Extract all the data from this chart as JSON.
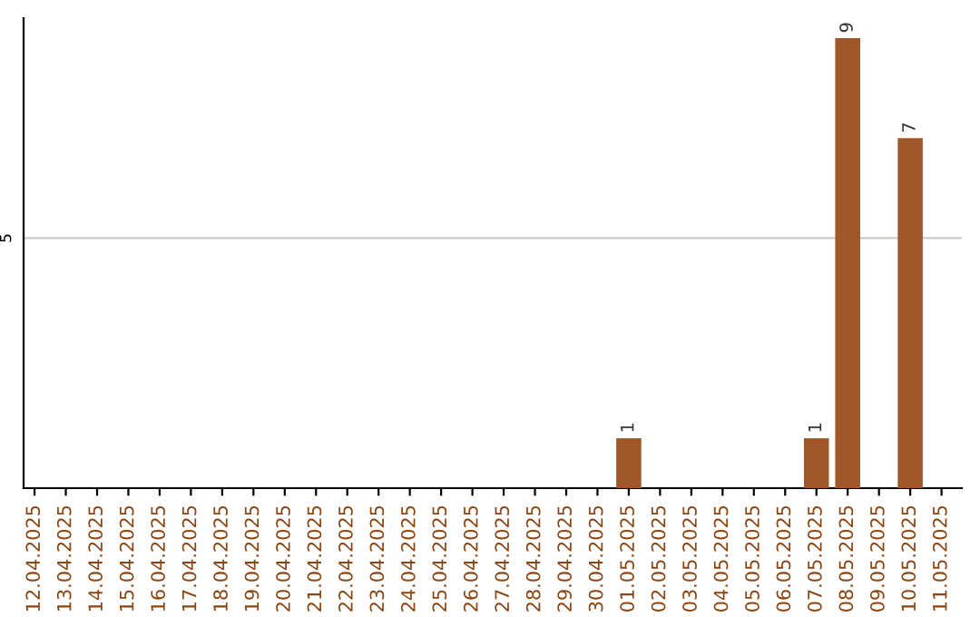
{
  "chart_data": {
    "type": "bar",
    "ylim": [
      0,
      9.4
    ],
    "categories": [
      "12.04.2025",
      "13.04.2025",
      "14.04.2025",
      "15.04.2025",
      "16.04.2025",
      "17.04.2025",
      "18.04.2025",
      "19.04.2025",
      "20.04.2025",
      "21.04.2025",
      "22.04.2025",
      "23.04.2025",
      "24.04.2025",
      "25.04.2025",
      "26.04.2025",
      "27.04.2025",
      "28.04.2025",
      "29.04.2025",
      "30.04.2025",
      "01.05.2025",
      "02.05.2025",
      "03.05.2025",
      "04.05.2025",
      "05.05.2025",
      "06.05.2025",
      "07.05.2025",
      "08.05.2025",
      "09.05.2025",
      "10.05.2025",
      "11.05.2025"
    ],
    "values": [
      null,
      null,
      null,
      null,
      null,
      null,
      null,
      null,
      null,
      null,
      null,
      null,
      null,
      null,
      null,
      null,
      null,
      null,
      null,
      1,
      null,
      null,
      null,
      null,
      null,
      1,
      9,
      null,
      7,
      null
    ],
    "data_labels": true,
    "color": "#a0582a",
    "ref_lines": [
      {
        "axis": "y",
        "value": 5,
        "label": "5",
        "color": "#cccccc"
      }
    ]
  }
}
